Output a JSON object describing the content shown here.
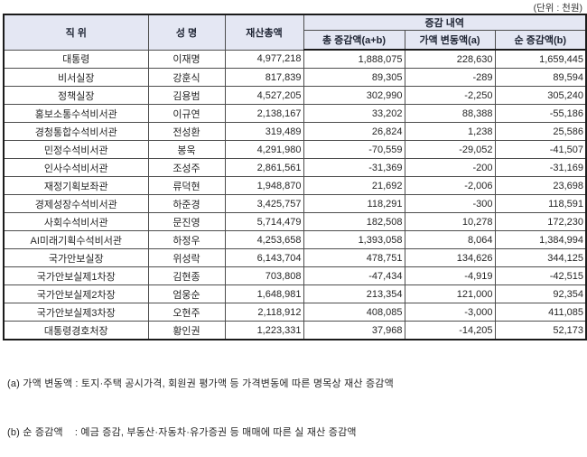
{
  "unit_label": "(단위 : 천원)",
  "table": {
    "headers": {
      "position": "직 위",
      "name": "성 명",
      "total_assets": "재산총액",
      "change_group": "증감 내역",
      "total_change": "총 증감액(a+b)",
      "value_change": "가액 변동액(a)",
      "net_change": "순 증감액(b)"
    },
    "rows": [
      {
        "position": "대통령",
        "name": "이재명",
        "total_assets": "4,977,218",
        "total_change": "1,888,075",
        "value_change": "228,630",
        "net_change": "1,659,445"
      },
      {
        "position": "비서실장",
        "name": "강훈식",
        "total_assets": "817,839",
        "total_change": "89,305",
        "value_change": "-289",
        "net_change": "89,594"
      },
      {
        "position": "정책실장",
        "name": "김용범",
        "total_assets": "4,527,205",
        "total_change": "302,990",
        "value_change": "-2,250",
        "net_change": "305,240"
      },
      {
        "position": "홍보소통수석비서관",
        "name": "이규연",
        "total_assets": "2,138,167",
        "total_change": "33,202",
        "value_change": "88,388",
        "net_change": "-55,186"
      },
      {
        "position": "경청통합수석비서관",
        "name": "전성환",
        "total_assets": "319,489",
        "total_change": "26,824",
        "value_change": "1,238",
        "net_change": "25,586"
      },
      {
        "position": "민정수석비서관",
        "name": "봉욱",
        "total_assets": "4,291,980",
        "total_change": "-70,559",
        "value_change": "-29,052",
        "net_change": "-41,507"
      },
      {
        "position": "인사수석비서관",
        "name": "조성주",
        "total_assets": "2,861,561",
        "total_change": "-31,369",
        "value_change": "-200",
        "net_change": "-31,169"
      },
      {
        "position": "재정기획보좌관",
        "name": "류덕현",
        "total_assets": "1,948,870",
        "total_change": "21,692",
        "value_change": "-2,006",
        "net_change": "23,698"
      },
      {
        "position": "경제성장수석비서관",
        "name": "하준경",
        "total_assets": "3,425,757",
        "total_change": "118,291",
        "value_change": "-300",
        "net_change": "118,591"
      },
      {
        "position": "사회수석비서관",
        "name": "문진영",
        "total_assets": "5,714,479",
        "total_change": "182,508",
        "value_change": "10,278",
        "net_change": "172,230"
      },
      {
        "position": "AI미래기획수석비서관",
        "name": "하정우",
        "total_assets": "4,253,658",
        "total_change": "1,393,058",
        "value_change": "8,064",
        "net_change": "1,384,994"
      },
      {
        "position": "국가안보실장",
        "name": "위성락",
        "total_assets": "6,143,704",
        "total_change": "478,751",
        "value_change": "134,626",
        "net_change": "344,125"
      },
      {
        "position": "국가안보실제1차장",
        "name": "김현종",
        "total_assets": "703,808",
        "total_change": "-47,434",
        "value_change": "-4,919",
        "net_change": "-42,515"
      },
      {
        "position": "국가안보실제2차장",
        "name": "엄웅순",
        "total_assets": "1,648,981",
        "total_change": "213,354",
        "value_change": "121,000",
        "net_change": "92,354"
      },
      {
        "position": "국가안보실제3차장",
        "name": "오현주",
        "total_assets": "2,118,912",
        "total_change": "408,085",
        "value_change": "-3,000",
        "net_change": "411,085"
      },
      {
        "position": "대통령경호처장",
        "name": "황인권",
        "total_assets": "1,223,331",
        "total_change": "37,968",
        "value_change": "-14,205",
        "net_change": "52,173"
      }
    ]
  },
  "footnotes": [
    "(a) 가액 변동액 : 토지·주택 공시가격, 회원권 평가액 등 가격변동에 따른 명목상 재산 증감액",
    "(b) 순 증감액    : 예금 증감, 부동산·자동차·유가증권 등 매매에 따른 실 재산 증감액"
  ],
  "colors": {
    "header_bg": "#e4e7f3",
    "outer_border": "#1b1b1b",
    "inner_border": "#4d4d4d",
    "text": "#262626"
  }
}
